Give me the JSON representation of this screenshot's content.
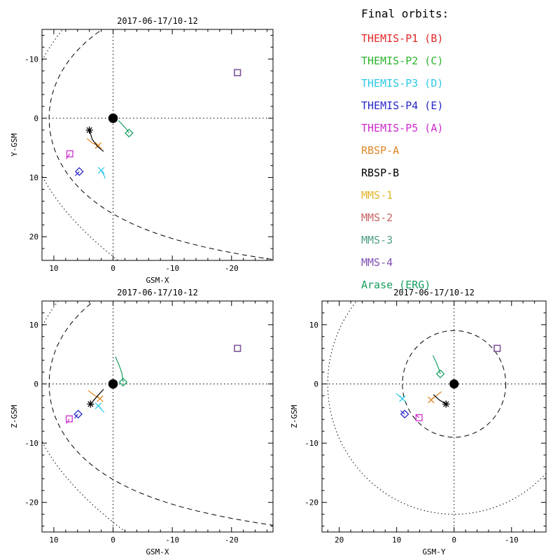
{
  "legend": {
    "title": "Final orbits:",
    "entries": [
      {
        "label": "THEMIS-P1 (B)",
        "color": "#e02828"
      },
      {
        "label": "THEMIS-P2 (C)",
        "color": "#2cb42c"
      },
      {
        "label": "THEMIS-P3 (D)",
        "color": "#2cc8e6"
      },
      {
        "label": "THEMIS-P4 (E)",
        "color": "#2828c8"
      },
      {
        "label": "THEMIS-P5 (A)",
        "color": "#cc2ccc"
      },
      {
        "label": "RBSP-A",
        "color": "#e08828"
      },
      {
        "label": "RBSP-B",
        "color": "#000000"
      },
      {
        "label": "MMS-1",
        "color": "#e0b428"
      },
      {
        "label": "MMS-2",
        "color": "#c86464"
      },
      {
        "label": "MMS-3",
        "color": "#50a082"
      },
      {
        "label": "MMS-4",
        "color": "#8050b4"
      },
      {
        "label": "Arase (ERG)",
        "color": "#18a060"
      }
    ]
  },
  "chart_data": {
    "type": "scatter",
    "description": "Spacecraft positions and final orbit segments in GSM coordinates (Earth radii). Earth is the filled dot at origin; dashed curve = magnetopause, dotted curve = bow shock; dotted crosshairs mark the zero axes.",
    "panels": [
      {
        "id": "xy",
        "title": "2017-06-17/10-12",
        "xaxis": {
          "label": "GSM-X",
          "lim": [
            12,
            -27
          ],
          "ticks": [
            10,
            0,
            -10,
            -20
          ],
          "minor_step": 2
        },
        "yaxis": {
          "label": "Y-GSM",
          "lim": [
            -15,
            24
          ],
          "ticks": [
            -10,
            0,
            10,
            20
          ],
          "minor_step": 2
        },
        "earth": {
          "x": 0,
          "y": 0,
          "radius": 0.8
        },
        "boundaries": {
          "magnetopause": {
            "style": "dashed",
            "model": "shue",
            "r0": 10.8,
            "alpha": 0.58
          },
          "bow_shock": {
            "style": "dotted",
            "model": "parabola",
            "x0": 14.5,
            "k": 37.6
          }
        }
      },
      {
        "id": "xz",
        "title": "2017-06-17/10-12",
        "xaxis": {
          "label": "GSM-X",
          "lim": [
            12,
            -27
          ],
          "ticks": [
            10,
            0,
            -10,
            -20
          ],
          "minor_step": 2
        },
        "yaxis": {
          "label": "Z-GSM",
          "lim": [
            14,
            -25
          ],
          "ticks": [
            10,
            0,
            -10,
            -20
          ],
          "minor_step": 2
        },
        "earth": {
          "x": 0,
          "y": 0,
          "radius": 0.8
        },
        "boundaries": {
          "magnetopause": {
            "style": "dashed",
            "model": "shue",
            "r0": 10.8,
            "alpha": 0.58
          },
          "bow_shock": {
            "style": "dotted",
            "model": "parabola",
            "x0": 14.5,
            "k": 37.6
          }
        }
      },
      {
        "id": "yz",
        "title": "2017-06-17/10-12",
        "xaxis": {
          "label": "GSM-Y",
          "lim": [
            23,
            -16
          ],
          "ticks": [
            20,
            10,
            0,
            -10
          ],
          "minor_step": 2
        },
        "yaxis": {
          "label": "Z-GSM",
          "lim": [
            14,
            -25
          ],
          "ticks": [
            10,
            0,
            -10,
            -20
          ],
          "minor_step": 2
        },
        "earth": {
          "x": 0,
          "y": 0,
          "radius": 0.8
        },
        "boundaries": {
          "magnetopause": {
            "style": "dashed",
            "model": "circle",
            "r": 9
          },
          "bow_shock": {
            "style": "dotted",
            "model": "circle",
            "r": 22
          }
        }
      }
    ],
    "spacecraft": [
      {
        "name": "THEMIS-P1 (B)",
        "color": "#e02828",
        "marker": "x",
        "panels": {}
      },
      {
        "name": "THEMIS-P2 (C)",
        "color": "#2cb42c",
        "marker": "diamond",
        "panels": {}
      },
      {
        "name": "THEMIS-P3 (D)",
        "color": "#2cc8e6",
        "marker": "x",
        "panels": {
          "xy": {
            "pos": [
              2.0,
              8.8
            ],
            "trail": [
              [
                1.3,
                10.2
              ],
              [
                1.6,
                9.5
              ],
              [
                2.0,
                8.8
              ]
            ]
          },
          "xz": {
            "pos": [
              2.5,
              -3.7
            ],
            "trail": [
              [
                1.5,
                -4.8
              ],
              [
                2.0,
                -4.3
              ],
              [
                2.5,
                -3.7
              ]
            ]
          },
          "yz": {
            "pos": [
              9.0,
              -2.5
            ],
            "trail": [
              [
                10.1,
                -1.6
              ],
              [
                9.6,
                -2.0
              ],
              [
                9.0,
                -2.5
              ]
            ]
          }
        }
      },
      {
        "name": "THEMIS-P4 (E)",
        "color": "#2828c8",
        "marker": "diamond",
        "panels": {
          "xy": {
            "pos": [
              5.7,
              9.0
            ],
            "trail": [
              [
                6.4,
                9.7
              ],
              [
                6.0,
                9.3
              ],
              [
                5.7,
                9.0
              ]
            ]
          },
          "xz": {
            "pos": [
              5.9,
              -5.1
            ],
            "trail": [
              [
                6.5,
                -5.8
              ],
              [
                6.2,
                -5.4
              ],
              [
                5.9,
                -5.1
              ]
            ]
          },
          "yz": {
            "pos": [
              8.6,
              -5.1
            ],
            "trail": [
              [
                9.3,
                -4.5
              ],
              [
                9.0,
                -4.8
              ],
              [
                8.6,
                -5.1
              ]
            ]
          }
        }
      },
      {
        "name": "THEMIS-P5 (A)",
        "color": "#cc2ccc",
        "marker": "square",
        "panels": {
          "xy": {
            "pos": [
              7.3,
              6.0
            ],
            "trail": [
              [
                7.9,
                6.9
              ],
              [
                7.6,
                6.4
              ],
              [
                7.3,
                6.0
              ]
            ]
          },
          "xz": {
            "pos": [
              7.4,
              -5.9
            ],
            "trail": [
              [
                7.9,
                -6.7
              ],
              [
                7.6,
                -6.3
              ],
              [
                7.4,
                -5.9
              ]
            ]
          },
          "yz": {
            "pos": [
              6.1,
              -5.7
            ],
            "trail": [
              [
                6.7,
                -5.2
              ],
              [
                6.4,
                -5.4
              ],
              [
                6.1,
                -5.7
              ]
            ]
          }
        }
      },
      {
        "name": "RBSP-A",
        "color": "#e08828",
        "marker": "x",
        "panels": {
          "xy": {
            "pos": [
              2.5,
              4.6
            ],
            "trail": [
              [
                4.4,
                3.4
              ],
              [
                3.5,
                4.2
              ],
              [
                2.5,
                4.6
              ]
            ]
          },
          "xz": {
            "pos": [
              2.2,
              -2.5
            ],
            "trail": [
              [
                4.2,
                -1.1
              ],
              [
                3.2,
                -1.9
              ],
              [
                2.2,
                -2.5
              ]
            ]
          },
          "yz": {
            "pos": [
              4.0,
              -2.7
            ],
            "trail": [
              [
                2.2,
                -1.3
              ],
              [
                3.1,
                -2.0
              ],
              [
                4.0,
                -2.7
              ]
            ]
          }
        }
      },
      {
        "name": "RBSP-B",
        "color": "#000000",
        "marker": "asterisk",
        "panels": {
          "xy": {
            "pos": [
              4.0,
              2.0
            ],
            "trail": [
              [
                1.6,
                5.6
              ],
              [
                2.6,
                4.8
              ],
              [
                3.5,
                3.6
              ],
              [
                4.0,
                2.0
              ]
            ]
          },
          "xz": {
            "pos": [
              3.8,
              -3.4
            ],
            "trail": [
              [
                1.6,
                -0.9
              ],
              [
                2.7,
                -2.1
              ],
              [
                3.8,
                -3.4
              ]
            ]
          },
          "yz": {
            "pos": [
              1.4,
              -3.4
            ],
            "trail": [
              [
                3.6,
                -1.8
              ],
              [
                2.6,
                -2.7
              ],
              [
                1.4,
                -3.4
              ]
            ]
          }
        }
      },
      {
        "name": "MMS-1",
        "color": "#e0b428",
        "marker": "square",
        "panels": {
          "xy": {
            "pos": [
              -21,
              -7.7
            ]
          },
          "xz": {
            "pos": [
              -21,
              6.0
            ]
          },
          "yz": {
            "pos": [
              -7.5,
              6.0
            ]
          }
        }
      },
      {
        "name": "MMS-2",
        "color": "#c86464",
        "marker": "square",
        "panels": {
          "xy": {
            "pos": [
              -21,
              -7.7
            ]
          },
          "xz": {
            "pos": [
              -21,
              6.0
            ]
          },
          "yz": {
            "pos": [
              -7.5,
              6.0
            ]
          }
        }
      },
      {
        "name": "MMS-3",
        "color": "#50a082",
        "marker": "square",
        "panels": {
          "xy": {
            "pos": [
              -21,
              -7.7
            ]
          },
          "xz": {
            "pos": [
              -21,
              6.0
            ]
          },
          "yz": {
            "pos": [
              -7.5,
              6.0
            ]
          }
        }
      },
      {
        "name": "MMS-4",
        "color": "#8050b4",
        "marker": "square",
        "panels": {
          "xy": {
            "pos": [
              -21,
              -7.7
            ]
          },
          "xz": {
            "pos": [
              -21,
              6.0
            ]
          },
          "yz": {
            "pos": [
              -7.5,
              6.0
            ]
          }
        }
      },
      {
        "name": "Arase (ERG)",
        "color": "#18a060",
        "marker": "diamond",
        "panels": {
          "xy": {
            "pos": [
              -2.7,
              2.5
            ],
            "trail": [
              [
                -0.9,
                0.4
              ],
              [
                -1.7,
                1.2
              ],
              [
                -2.3,
                1.9
              ],
              [
                -2.7,
                2.5
              ]
            ]
          },
          "xz": {
            "pos": [
              -1.7,
              0.3
            ],
            "trail": [
              [
                -0.4,
                4.6
              ],
              [
                -1.0,
                3.2
              ],
              [
                -1.5,
                1.8
              ],
              [
                -1.7,
                0.3
              ]
            ]
          },
          "yz": {
            "pos": [
              2.4,
              1.7
            ],
            "trail": [
              [
                3.7,
                4.8
              ],
              [
                3.1,
                3.6
              ],
              [
                2.7,
                2.6
              ],
              [
                2.4,
                1.7
              ]
            ]
          }
        }
      }
    ]
  }
}
